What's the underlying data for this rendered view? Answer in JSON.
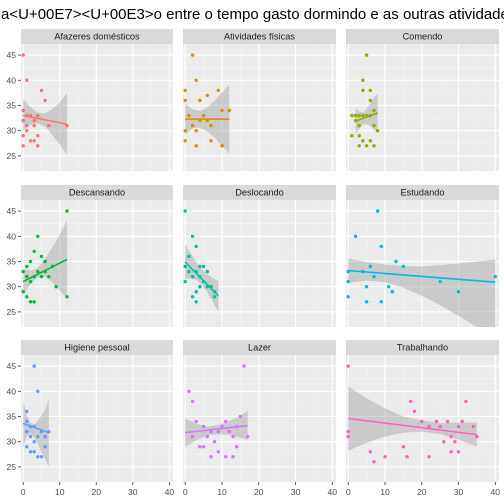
{
  "title": "a<U+00E7><U+00E3>o entre o tempo gasto dormindo e as outras atividades",
  "chart_data": {
    "type": "scatter",
    "title": "a<U+00E7><U+00E3>o entre o tempo gasto dormindo e as outras atividades",
    "xlabel": "",
    "ylabel": "",
    "xlim": [
      -0.6,
      41
    ],
    "ylim": [
      22,
      47.2
    ],
    "x_ticks": [
      "0",
      "10",
      "20",
      "30",
      "40"
    ],
    "y_ticks": [
      "25",
      "30",
      "35",
      "40",
      "45"
    ],
    "x_tick_values": [
      0,
      10,
      20,
      30,
      40
    ],
    "y_tick_values": [
      25,
      30,
      35,
      40,
      45
    ],
    "grid": true,
    "facets": [
      {
        "label": "Afazeres domésticos",
        "color": "#F8766D",
        "points": [
          [
            0,
            45
          ],
          [
            1,
            40
          ],
          [
            0,
            34
          ],
          [
            1,
            33
          ],
          [
            0,
            32
          ],
          [
            1,
            31
          ],
          [
            2,
            33
          ],
          [
            3,
            32
          ],
          [
            4,
            33
          ],
          [
            3,
            31
          ],
          [
            5,
            38
          ],
          [
            6,
            36
          ],
          [
            7,
            31
          ],
          [
            1,
            30
          ],
          [
            2,
            28
          ],
          [
            3,
            28
          ],
          [
            4,
            29
          ],
          [
            4,
            27
          ],
          [
            0,
            27
          ],
          [
            0,
            29
          ],
          [
            12,
            31
          ]
        ],
        "fit": {
          "x": [
            0,
            12
          ],
          "y": [
            33.0,
            31.3
          ]
        },
        "band": {
          "x": [
            0,
            2,
            4,
            6,
            8,
            10,
            12
          ],
          "lo": [
            30.0,
            31.2,
            31.5,
            30.8,
            29.2,
            27.2,
            25.3
          ],
          "hi": [
            36.2,
            34.7,
            33.6,
            33.4,
            34.3,
            35.6,
            37.4
          ]
        }
      },
      {
        "label": "Atividades físicas",
        "color": "#D39200",
        "points": [
          [
            0,
            38
          ],
          [
            0,
            36
          ],
          [
            2,
            45
          ],
          [
            3,
            40
          ],
          [
            4,
            36
          ],
          [
            6,
            37
          ],
          [
            9,
            38
          ],
          [
            10,
            34
          ],
          [
            12,
            34
          ],
          [
            1,
            33
          ],
          [
            2,
            31
          ],
          [
            4,
            32
          ],
          [
            5,
            33
          ],
          [
            6,
            32
          ],
          [
            7,
            31
          ],
          [
            0,
            30
          ],
          [
            0,
            28
          ],
          [
            3,
            27
          ],
          [
            7,
            28
          ],
          [
            10,
            27
          ],
          [
            3,
            30
          ]
        ],
        "fit": {
          "x": [
            0,
            12
          ],
          "y": [
            32.3,
            32.3
          ]
        },
        "band": {
          "x": [
            0,
            2,
            4,
            6,
            8,
            10,
            12
          ],
          "lo": [
            29.2,
            30.5,
            30.6,
            29.9,
            28.6,
            27.0,
            25.4
          ],
          "hi": [
            35.5,
            34.2,
            33.9,
            34.6,
            36.0,
            37.6,
            39.2
          ]
        }
      },
      {
        "label": "Comendo",
        "color": "#93AA00",
        "points": [
          [
            5,
            45
          ],
          [
            4,
            40
          ],
          [
            4,
            38
          ],
          [
            6,
            38
          ],
          [
            6,
            36
          ],
          [
            7,
            34
          ],
          [
            2,
            33
          ],
          [
            3,
            33
          ],
          [
            4,
            33
          ],
          [
            5,
            33
          ],
          [
            6,
            33
          ],
          [
            2,
            32
          ],
          [
            3,
            31
          ],
          [
            1,
            33
          ],
          [
            7,
            31
          ],
          [
            8,
            30
          ],
          [
            3,
            29
          ],
          [
            4,
            28
          ],
          [
            5,
            27
          ],
          [
            6,
            28
          ],
          [
            3,
            27
          ],
          [
            7,
            27
          ],
          [
            1,
            29
          ]
        ],
        "fit": {
          "x": [
            2,
            8
          ],
          "y": [
            31.9,
            33.5
          ]
        },
        "band": {
          "x": [
            2,
            3,
            4,
            5,
            6,
            7,
            8
          ],
          "lo": [
            29.2,
            30.4,
            31.2,
            31.3,
            30.9,
            30.3,
            29.7
          ],
          "hi": [
            34.5,
            33.8,
            33.6,
            34.4,
            35.5,
            36.5,
            37.4
          ]
        }
      },
      {
        "label": "Descansando",
        "color": "#00BA38",
        "points": [
          [
            0,
            33
          ],
          [
            0,
            29
          ],
          [
            1,
            28
          ],
          [
            2,
            27
          ],
          [
            3,
            27
          ],
          [
            1,
            32
          ],
          [
            2,
            31
          ],
          [
            3,
            32
          ],
          [
            4,
            33
          ],
          [
            5,
            32
          ],
          [
            6,
            33
          ],
          [
            7,
            32
          ],
          [
            1,
            34
          ],
          [
            2,
            35
          ],
          [
            3,
            37
          ],
          [
            4,
            40
          ],
          [
            5,
            36
          ],
          [
            6,
            35
          ],
          [
            8,
            34
          ],
          [
            12,
            45
          ],
          [
            12,
            28
          ],
          [
            9,
            30
          ]
        ],
        "fit": {
          "x": [
            0,
            12
          ],
          "y": [
            31.0,
            35.4
          ]
        },
        "band": {
          "x": [
            0,
            2,
            4,
            6,
            8,
            10,
            12
          ],
          "lo": [
            28.4,
            30.5,
            31.8,
            32.0,
            30.9,
            29.3,
            27.6
          ],
          "hi": [
            33.6,
            33.2,
            33.7,
            35.5,
            37.8,
            40.3,
            43.2
          ]
        }
      },
      {
        "label": "Deslocando",
        "color": "#00C19F",
        "points": [
          [
            0,
            45
          ],
          [
            2,
            40
          ],
          [
            3,
            38
          ],
          [
            1,
            36
          ],
          [
            0,
            34
          ],
          [
            1,
            33
          ],
          [
            2,
            32
          ],
          [
            3,
            33
          ],
          [
            4,
            34
          ],
          [
            5,
            34
          ],
          [
            6,
            33
          ],
          [
            4,
            32
          ],
          [
            5,
            31
          ],
          [
            6,
            30
          ],
          [
            7,
            30
          ],
          [
            8,
            29
          ],
          [
            8,
            28
          ],
          [
            3,
            29
          ],
          [
            4,
            30
          ],
          [
            2,
            28
          ],
          [
            3,
            27
          ],
          [
            0,
            31
          ]
        ],
        "fit": {
          "x": [
            0,
            9
          ],
          "y": [
            34.9,
            28.2
          ]
        },
        "band": {
          "x": [
            0,
            1.5,
            3,
            4.5,
            6,
            7.5,
            9
          ],
          "lo": [
            31.6,
            31.6,
            31.4,
            30.4,
            28.9,
            27.0,
            25.0
          ],
          "hi": [
            38.3,
            36.7,
            34.8,
            33.4,
            32.5,
            31.7,
            31.1
          ]
        }
      },
      {
        "label": "Estudando",
        "color": "#00B9E3",
        "points": [
          [
            0,
            33
          ],
          [
            0,
            31
          ],
          [
            0,
            28
          ],
          [
            2,
            40
          ],
          [
            4,
            33
          ],
          [
            5,
            30
          ],
          [
            5,
            27
          ],
          [
            6,
            34
          ],
          [
            7,
            32
          ],
          [
            8,
            45
          ],
          [
            9,
            38
          ],
          [
            9,
            27
          ],
          [
            11,
            30
          ],
          [
            12,
            29
          ],
          [
            13,
            35
          ],
          [
            15,
            34
          ],
          [
            25,
            31
          ],
          [
            30,
            29
          ],
          [
            40,
            32
          ]
        ],
        "fit": {
          "x": [
            0,
            40
          ],
          "y": [
            33.2,
            30.9
          ]
        },
        "band": {
          "x": [
            0,
            5,
            10,
            15,
            20,
            25,
            30,
            35,
            40
          ],
          "lo": [
            30.8,
            31.2,
            30.9,
            29.8,
            28.2,
            26.3,
            24.2,
            22.0,
            19.8
          ],
          "hi": [
            35.6,
            34.9,
            34.4,
            34.1,
            34.0,
            34.3,
            34.6,
            35.0,
            35.4
          ]
        }
      },
      {
        "label": "Higiene pessoal",
        "color": "#619CFF",
        "points": [
          [
            1,
            36
          ],
          [
            1,
            34
          ],
          [
            2,
            33
          ],
          [
            3,
            33
          ],
          [
            2,
            31
          ],
          [
            3,
            30
          ],
          [
            4,
            31
          ],
          [
            5,
            32
          ],
          [
            6,
            31
          ],
          [
            7,
            32
          ],
          [
            2,
            28
          ],
          [
            3,
            28
          ],
          [
            4,
            27
          ],
          [
            5,
            27
          ],
          [
            6,
            29
          ],
          [
            3,
            45
          ],
          [
            4,
            40
          ],
          [
            1,
            29
          ],
          [
            1,
            32
          ]
        ],
        "fit": {
          "x": [
            0,
            7
          ],
          "y": [
            33.6,
            31.8
          ]
        },
        "band": {
          "x": [
            0,
            1,
            2,
            3,
            4,
            5,
            6,
            7
          ],
          "lo": [
            29.0,
            31.0,
            31.6,
            30.8,
            29.5,
            28.0,
            26.5,
            25.0
          ],
          "hi": [
            38.2,
            35.3,
            33.7,
            33.4,
            34.2,
            35.2,
            36.3,
            38.6
          ]
        }
      },
      {
        "label": "Lazer",
        "color": "#DB72FB",
        "points": [
          [
            1,
            40
          ],
          [
            2,
            38
          ],
          [
            3,
            34
          ],
          [
            5,
            33
          ],
          [
            6,
            31
          ],
          [
            7,
            32
          ],
          [
            8,
            30
          ],
          [
            9,
            32
          ],
          [
            10,
            33
          ],
          [
            11,
            34
          ],
          [
            12,
            32
          ],
          [
            13,
            31
          ],
          [
            14,
            33
          ],
          [
            15,
            35
          ],
          [
            16,
            45
          ],
          [
            17,
            31
          ],
          [
            5,
            29
          ],
          [
            7,
            27
          ],
          [
            9,
            28
          ],
          [
            11,
            27
          ],
          [
            13,
            27
          ],
          [
            4,
            29
          ],
          [
            2,
            31
          ],
          [
            14,
            29
          ]
        ],
        "fit": {
          "x": [
            0,
            17
          ],
          "y": [
            31.8,
            33.2
          ]
        },
        "band": {
          "x": [
            0,
            3,
            6,
            9,
            12,
            15,
            17
          ],
          "lo": [
            29.0,
            30.3,
            31.2,
            31.5,
            31.3,
            30.8,
            30.3
          ],
          "hi": [
            34.6,
            33.6,
            33.0,
            33.3,
            34.1,
            35.1,
            36.1
          ]
        }
      },
      {
        "label": "Trabalhando",
        "color": "#FF61C3",
        "points": [
          [
            0,
            45
          ],
          [
            0,
            32
          ],
          [
            0,
            31
          ],
          [
            6,
            28
          ],
          [
            7,
            26
          ],
          [
            10,
            27
          ],
          [
            15,
            29
          ],
          [
            16,
            27
          ],
          [
            17,
            38
          ],
          [
            18,
            36
          ],
          [
            20,
            34
          ],
          [
            22,
            33
          ],
          [
            24,
            34
          ],
          [
            25,
            33
          ],
          [
            26,
            30
          ],
          [
            27,
            34
          ],
          [
            28,
            31
          ],
          [
            29,
            30
          ],
          [
            30,
            33
          ],
          [
            31,
            34
          ],
          [
            32,
            38
          ],
          [
            34,
            33
          ],
          [
            35,
            31
          ],
          [
            22,
            27
          ],
          [
            28,
            28
          ],
          [
            30,
            28
          ]
        ],
        "fit": {
          "x": [
            0,
            35
          ],
          "y": [
            34.6,
            31.4
          ]
        },
        "band": {
          "x": [
            0,
            5,
            10,
            15,
            20,
            25,
            30,
            35
          ],
          "lo": [
            28.2,
            29.8,
            31.0,
            31.8,
            32.0,
            31.5,
            30.4,
            29.0
          ],
          "hi": [
            41.0,
            38.6,
            36.6,
            35.0,
            34.2,
            33.7,
            33.8,
            33.8
          ]
        }
      }
    ]
  }
}
